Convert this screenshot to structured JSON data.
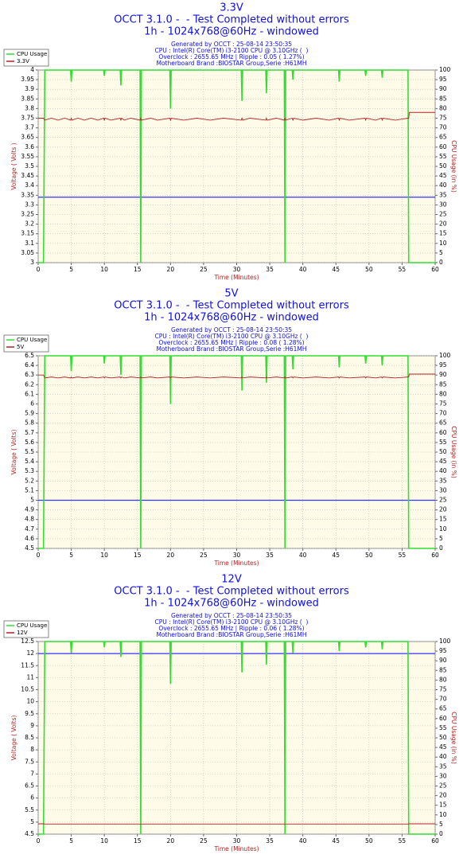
{
  "chart_data": [
    {
      "type": "line",
      "title": "3.3V",
      "subtitle": [
        "OCCT 3.1.0 -  - Test Completed without errors",
        "1h - 1024x768@60Hz - windowed"
      ],
      "info": [
        "Generated by OCCT : 25-08-14 23:50:35",
        "CPU : Intel(R) Core(TM) i3-2100 CPU @ 3.10GHz (  )",
        "Overclock : 2655.65 MHz | Ripple : 0.05 ( 1.27%)",
        "Motherboard Brand :BIOSTAR Group,Serie :H61MH"
      ],
      "x_label": "Time (Minutes)",
      "y_label": "Voltage ( Volts )",
      "y2_label": "CPU Usage (in %)",
      "x": [
        0,
        0.8,
        1,
        2,
        3,
        4,
        4.9,
        5,
        5.1,
        6,
        7,
        8,
        9,
        9.9,
        10,
        10.1,
        11,
        12.4,
        12.5,
        12.6,
        13,
        14,
        15.4,
        15.5,
        15.6,
        17,
        18,
        19.9,
        20,
        20.1,
        22,
        24,
        26,
        28,
        30.7,
        30.8,
        30.9,
        32,
        34.4,
        34.5,
        34.6,
        36,
        37.2,
        37.3,
        37.4,
        38.4,
        38.5,
        38.6,
        40,
        42,
        44,
        45.4,
        45.5,
        45.6,
        47,
        49.4,
        49.5,
        49.6,
        51,
        51.9,
        52,
        52.1,
        54,
        55.9,
        56,
        56.1,
        58,
        60
      ],
      "series": [
        {
          "name": "CPU Usage",
          "color": "#33dd33",
          "axis": "y2",
          "values": [
            0,
            0,
            100,
            100,
            100,
            100,
            100,
            94,
            100,
            100,
            100,
            100,
            100,
            100,
            97,
            100,
            100,
            100,
            92,
            100,
            100,
            100,
            100,
            0,
            100,
            100,
            100,
            100,
            80,
            100,
            100,
            100,
            100,
            100,
            100,
            84,
            100,
            100,
            100,
            88,
            100,
            100,
            100,
            0,
            100,
            100,
            95,
            100,
            100,
            100,
            100,
            100,
            94,
            100,
            100,
            100,
            97,
            100,
            100,
            100,
            96,
            100,
            100,
            100,
            0,
            0,
            0,
            0
          ]
        },
        {
          "name": "3.3V",
          "color": "#b22222",
          "values": [
            3.75,
            3.75,
            3.74,
            3.75,
            3.74,
            3.75,
            3.74,
            3.75,
            3.74,
            3.75,
            3.74,
            3.75,
            3.74,
            3.75,
            3.74,
            3.75,
            3.74,
            3.75,
            3.74,
            3.75,
            3.74,
            3.75,
            3.74,
            3.75,
            3.74,
            3.75,
            3.74,
            3.75,
            3.74,
            3.75,
            3.74,
            3.75,
            3.74,
            3.75,
            3.74,
            3.75,
            3.74,
            3.75,
            3.74,
            3.75,
            3.74,
            3.75,
            3.74,
            3.75,
            3.74,
            3.75,
            3.74,
            3.75,
            3.74,
            3.75,
            3.74,
            3.75,
            3.74,
            3.75,
            3.74,
            3.75,
            3.74,
            3.75,
            3.74,
            3.75,
            3.74,
            3.75,
            3.74,
            3.75,
            3.75,
            3.78,
            3.78,
            3.78
          ]
        }
      ],
      "reference_line": {
        "value": 3.34,
        "color": "#3333ff"
      },
      "xlim": [
        0,
        60
      ],
      "xticks": [
        0,
        5,
        10,
        15,
        20,
        25,
        30,
        35,
        40,
        45,
        50,
        55,
        60
      ],
      "ylim": [
        3,
        4
      ],
      "yticks": [
        3,
        3.05,
        3.1,
        3.15,
        3.2,
        3.25,
        3.3,
        3.35,
        3.4,
        3.45,
        3.5,
        3.55,
        3.6,
        3.65,
        3.7,
        3.75,
        3.8,
        3.85,
        3.9,
        3.95,
        4
      ],
      "y2lim": [
        0,
        100
      ],
      "y2ticks": [
        0,
        5,
        10,
        15,
        20,
        25,
        30,
        35,
        40,
        45,
        50,
        55,
        60,
        65,
        70,
        75,
        80,
        85,
        90,
        95,
        100
      ],
      "grid": true,
      "legend": "top-left"
    },
    {
      "type": "line",
      "title": "5V",
      "subtitle": [
        "OCCT 3.1.0 -  - Test Completed without errors",
        "1h - 1024x768@60Hz - windowed"
      ],
      "info": [
        "Generated by OCCT : 25-08-14 23:50:35",
        "CPU : Intel(R) Core(TM) i3-2100 CPU @ 3.10GHz (  )",
        "Overclock : 2655.65 MHz | Ripple : 0.08 ( 1.28%)",
        "Motherboard Brand :BIOSTAR Group,Serie :H61MH"
      ],
      "x_label": "Time (Minutes)",
      "y_label": "Voltage ( Volts)",
      "y2_label": "CPU Usage (in %)",
      "x": [
        0,
        0.8,
        1,
        2,
        3,
        4,
        4.9,
        5,
        5.1,
        6,
        7,
        8,
        9,
        9.9,
        10,
        10.1,
        11,
        12.4,
        12.5,
        12.6,
        13,
        14,
        15.4,
        15.5,
        15.6,
        17,
        18,
        19.9,
        20,
        20.1,
        22,
        24,
        26,
        28,
        30.7,
        30.8,
        30.9,
        32,
        34.4,
        34.5,
        34.6,
        36,
        37.2,
        37.3,
        37.4,
        38.4,
        38.5,
        38.6,
        40,
        42,
        44,
        45.4,
        45.5,
        45.6,
        47,
        49.4,
        49.5,
        49.6,
        51,
        51.9,
        52,
        52.1,
        54,
        55.9,
        56,
        56.1,
        58,
        60
      ],
      "series": [
        {
          "name": "CPU Usage",
          "color": "#33dd33",
          "axis": "y2",
          "values": [
            0,
            0,
            100,
            100,
            100,
            100,
            100,
            92,
            100,
            100,
            100,
            100,
            100,
            100,
            96,
            100,
            100,
            100,
            90,
            100,
            100,
            100,
            100,
            0,
            100,
            100,
            100,
            100,
            75,
            100,
            100,
            100,
            100,
            100,
            100,
            82,
            100,
            100,
            100,
            86,
            100,
            100,
            100,
            0,
            100,
            100,
            93,
            100,
            100,
            100,
            100,
            100,
            94,
            100,
            100,
            100,
            96,
            100,
            100,
            100,
            95,
            100,
            100,
            100,
            0,
            0,
            0,
            0
          ]
        },
        {
          "name": "5V",
          "color": "#b22222",
          "values": [
            6.3,
            6.3,
            6.27,
            6.28,
            6.27,
            6.28,
            6.27,
            6.28,
            6.27,
            6.28,
            6.27,
            6.28,
            6.27,
            6.28,
            6.27,
            6.28,
            6.27,
            6.28,
            6.27,
            6.28,
            6.27,
            6.28,
            6.27,
            6.28,
            6.27,
            6.28,
            6.27,
            6.28,
            6.27,
            6.28,
            6.27,
            6.28,
            6.27,
            6.28,
            6.27,
            6.28,
            6.27,
            6.28,
            6.27,
            6.28,
            6.27,
            6.28,
            6.27,
            6.28,
            6.27,
            6.28,
            6.27,
            6.28,
            6.27,
            6.28,
            6.27,
            6.28,
            6.27,
            6.28,
            6.27,
            6.28,
            6.27,
            6.28,
            6.27,
            6.28,
            6.27,
            6.28,
            6.27,
            6.28,
            6.28,
            6.31,
            6.31,
            6.31
          ]
        }
      ],
      "reference_line": {
        "value": 5,
        "color": "#3333ff"
      },
      "xlim": [
        0,
        60
      ],
      "xticks": [
        0,
        5,
        10,
        15,
        20,
        25,
        30,
        35,
        40,
        45,
        50,
        55,
        60
      ],
      "ylim": [
        4.5,
        6.5
      ],
      "yticks": [
        4.5,
        4.6,
        4.7,
        4.8,
        4.9,
        5,
        5.1,
        5.2,
        5.3,
        5.4,
        5.5,
        5.6,
        5.7,
        5.8,
        5.9,
        6,
        6.1,
        6.2,
        6.3,
        6.4,
        6.5
      ],
      "y2lim": [
        0,
        100
      ],
      "y2ticks": [
        0,
        5,
        10,
        15,
        20,
        25,
        30,
        35,
        40,
        45,
        50,
        55,
        60,
        65,
        70,
        75,
        80,
        85,
        90,
        95,
        100
      ],
      "grid": true,
      "legend": "top-left"
    },
    {
      "type": "line",
      "title": "12V",
      "subtitle": [
        "OCCT 3.1.0 -  - Test Completed without errors",
        "1h - 1024x768@60Hz - windowed"
      ],
      "info": [
        "Generated by OCCT : 25-08-14 23:50:35",
        "CPU : Intel(R) Core(TM) i3-2100 CPU @ 3.10GHz (  )",
        "Overclock : 2655.65 MHz | Ripple : 0.06 ( 1.28%)",
        "Motherboard Brand :BIOSTAR Group,Serie :H61MH"
      ],
      "x_label": "Time (Minutes)",
      "y_label": "Voltage ( Volts)",
      "y2_label": "CPU Usage (in %)",
      "x": [
        0,
        0.8,
        1,
        2,
        3,
        4,
        4.9,
        5,
        5.1,
        6,
        7,
        8,
        9,
        9.9,
        10,
        10.1,
        11,
        12.4,
        12.5,
        12.6,
        13,
        14,
        15.4,
        15.5,
        15.6,
        17,
        18,
        19.9,
        20,
        20.1,
        22,
        24,
        26,
        28,
        30.7,
        30.8,
        30.9,
        32,
        34.4,
        34.5,
        34.6,
        36,
        37.2,
        37.3,
        37.4,
        38.4,
        38.5,
        38.6,
        40,
        42,
        44,
        45.4,
        45.5,
        45.6,
        47,
        49.4,
        49.5,
        49.6,
        51,
        51.9,
        52,
        52.1,
        54,
        55.9,
        56,
        56.1,
        58,
        60
      ],
      "series": [
        {
          "name": "CPU Usage",
          "color": "#33dd33",
          "axis": "y2",
          "values": [
            0,
            0,
            100,
            100,
            100,
            100,
            100,
            94,
            100,
            100,
            100,
            100,
            100,
            100,
            97,
            100,
            100,
            100,
            92,
            100,
            100,
            100,
            100,
            0,
            100,
            100,
            100,
            100,
            78,
            100,
            100,
            100,
            100,
            100,
            100,
            84,
            100,
            100,
            100,
            88,
            100,
            100,
            100,
            0,
            100,
            100,
            94,
            100,
            100,
            100,
            100,
            100,
            95,
            100,
            100,
            100,
            97,
            100,
            100,
            100,
            96,
            100,
            100,
            100,
            0,
            0,
            0,
            0
          ]
        },
        {
          "name": "12V",
          "color": "#b22222",
          "values": [
            4.93,
            4.93,
            4.92,
            4.92,
            4.92,
            4.92,
            4.92,
            4.92,
            4.92,
            4.92,
            4.92,
            4.92,
            4.92,
            4.92,
            4.92,
            4.92,
            4.92,
            4.92,
            4.92,
            4.92,
            4.92,
            4.92,
            4.92,
            4.92,
            4.92,
            4.92,
            4.92,
            4.92,
            4.92,
            4.92,
            4.92,
            4.92,
            4.92,
            4.92,
            4.92,
            4.92,
            4.92,
            4.92,
            4.92,
            4.92,
            4.92,
            4.92,
            4.92,
            4.92,
            4.92,
            4.92,
            4.92,
            4.92,
            4.92,
            4.92,
            4.92,
            4.92,
            4.92,
            4.92,
            4.92,
            4.92,
            4.92,
            4.92,
            4.92,
            4.92,
            4.92,
            4.92,
            4.92,
            4.92,
            4.92,
            4.93,
            4.93,
            4.93
          ]
        }
      ],
      "reference_line": {
        "value": 12,
        "color": "#3333ff"
      },
      "xlim": [
        0,
        60
      ],
      "xticks": [
        0,
        5,
        10,
        15,
        20,
        25,
        30,
        35,
        40,
        45,
        50,
        55,
        60
      ],
      "ylim": [
        4.5,
        12.5
      ],
      "yticks": [
        4.5,
        5,
        5.5,
        6,
        6.5,
        7,
        7.5,
        8,
        8.5,
        9,
        9.5,
        10,
        10.5,
        11,
        11.5,
        12,
        12.5
      ],
      "y2lim": [
        0,
        100
      ],
      "y2ticks": [
        0,
        5,
        10,
        15,
        20,
        25,
        30,
        35,
        40,
        45,
        50,
        55,
        60,
        65,
        70,
        75,
        80,
        85,
        90,
        95,
        100
      ],
      "grid": true,
      "legend": "top-left"
    }
  ]
}
